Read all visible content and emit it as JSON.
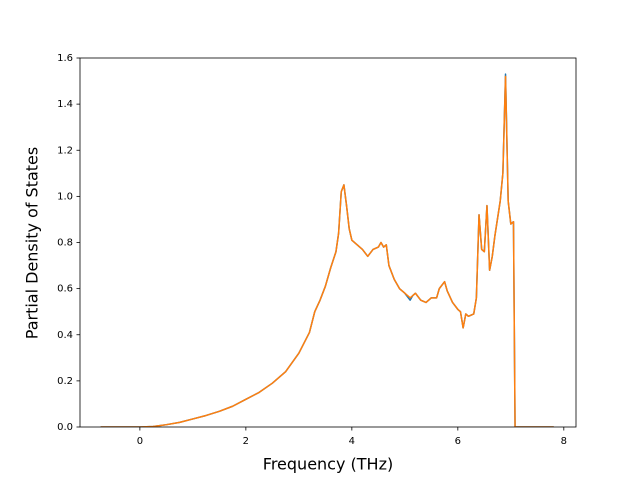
{
  "chart_data": {
    "type": "line",
    "xlabel": "Frequency (THz)",
    "ylabel": "Partial Density of States",
    "x": [
      -0.74,
      -0.5,
      -0.25,
      0,
      0.25,
      0.5,
      0.75,
      1.0,
      1.25,
      1.5,
      1.75,
      2.0,
      2.25,
      2.5,
      2.75,
      3.0,
      3.2,
      3.3,
      3.4,
      3.5,
      3.6,
      3.7,
      3.75,
      3.8,
      3.85,
      3.9,
      3.95,
      4.0,
      4.1,
      4.2,
      4.3,
      4.4,
      4.5,
      4.55,
      4.6,
      4.65,
      4.7,
      4.8,
      4.9,
      5.0,
      5.1,
      5.15,
      5.2,
      5.3,
      5.4,
      5.5,
      5.6,
      5.65,
      5.75,
      5.8,
      5.9,
      6.0,
      6.05,
      6.1,
      6.15,
      6.2,
      6.3,
      6.35,
      6.4,
      6.45,
      6.5,
      6.55,
      6.6,
      6.65,
      6.7,
      6.8,
      6.85,
      6.9,
      6.95,
      7.0,
      7.05,
      7.08,
      7.1,
      7.5,
      7.81
    ],
    "series": [
      {
        "color": "#1f77b4",
        "values": [
          0,
          0,
          0,
          0,
          0.002,
          0.01,
          0.02,
          0.035,
          0.05,
          0.068,
          0.09,
          0.12,
          0.15,
          0.19,
          0.24,
          0.32,
          0.41,
          0.5,
          0.55,
          0.61,
          0.69,
          0.76,
          0.84,
          1.02,
          1.05,
          0.96,
          0.86,
          0.81,
          0.79,
          0.77,
          0.74,
          0.77,
          0.78,
          0.8,
          0.78,
          0.79,
          0.7,
          0.64,
          0.6,
          0.58,
          0.55,
          0.57,
          0.58,
          0.55,
          0.54,
          0.56,
          0.56,
          0.6,
          0.63,
          0.59,
          0.54,
          0.51,
          0.5,
          0.43,
          0.49,
          0.48,
          0.49,
          0.56,
          0.92,
          0.77,
          0.76,
          0.96,
          0.68,
          0.74,
          0.83,
          0.98,
          1.1,
          1.53,
          0.98,
          0.88,
          0.89,
          0,
          0,
          0,
          0
        ]
      },
      {
        "color": "#ff7f0e",
        "values": [
          0,
          0,
          0,
          0,
          0.002,
          0.01,
          0.02,
          0.035,
          0.05,
          0.068,
          0.09,
          0.12,
          0.15,
          0.19,
          0.24,
          0.32,
          0.41,
          0.5,
          0.55,
          0.61,
          0.69,
          0.76,
          0.84,
          1.02,
          1.05,
          0.96,
          0.86,
          0.81,
          0.79,
          0.77,
          0.74,
          0.77,
          0.78,
          0.8,
          0.78,
          0.79,
          0.7,
          0.64,
          0.6,
          0.58,
          0.56,
          0.57,
          0.58,
          0.55,
          0.54,
          0.56,
          0.56,
          0.6,
          0.63,
          0.59,
          0.54,
          0.51,
          0.5,
          0.43,
          0.49,
          0.48,
          0.49,
          0.56,
          0.92,
          0.77,
          0.76,
          0.96,
          0.68,
          0.74,
          0.83,
          0.98,
          1.1,
          1.52,
          0.98,
          0.88,
          0.89,
          0,
          0,
          0,
          0
        ]
      }
    ],
    "xlim": [
      -1.13,
      8.23
    ],
    "xticks": [
      0,
      2,
      4,
      6,
      8
    ],
    "ylim": [
      0,
      1.6
    ],
    "yticks": [
      {
        "value": 0,
        "label": "0.0"
      },
      0.2,
      0.4,
      0.6,
      0.8,
      {
        "value": 1,
        "label": "1.0"
      },
      1.2,
      1.4,
      1.6
    ],
    "grid": false
  }
}
